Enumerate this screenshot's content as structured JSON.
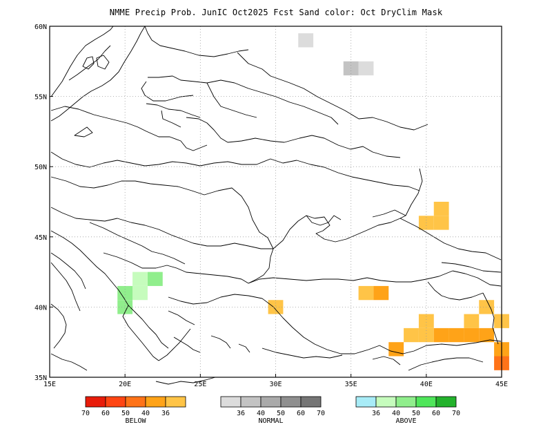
{
  "title": "NMME Precip Prob. JunIC  Oct2025 Fcst  Sand color: Oct DryClim Mask",
  "map": {
    "lon_range": [
      15,
      45
    ],
    "lat_range": [
      35,
      60
    ],
    "grid_lines": "dotted",
    "lon_ticks": [
      {
        "value": 15,
        "label": "15E"
      },
      {
        "value": 20,
        "label": "20E"
      },
      {
        "value": 25,
        "label": "25E"
      },
      {
        "value": 30,
        "label": "30E"
      },
      {
        "value": 35,
        "label": "35E"
      },
      {
        "value": 40,
        "label": "40E"
      },
      {
        "value": 45,
        "label": "45E"
      }
    ],
    "lat_ticks": [
      {
        "value": 60,
        "label": "60N"
      },
      {
        "value": 55,
        "label": "55N"
      },
      {
        "value": 50,
        "label": "50N"
      },
      {
        "value": 45,
        "label": "45N"
      },
      {
        "value": 40,
        "label": "40N"
      },
      {
        "value": 35,
        "label": "35N"
      }
    ],
    "cells": [
      {
        "lon": 32,
        "lat": 59,
        "category": "normal",
        "level": 0
      },
      {
        "lon": 35,
        "lat": 57,
        "category": "normal",
        "level": 1
      },
      {
        "lon": 36,
        "lat": 57,
        "category": "normal",
        "level": 0
      },
      {
        "lon": 41,
        "lat": 47,
        "category": "below",
        "level": 4
      },
      {
        "lon": 40,
        "lat": 46,
        "category": "below",
        "level": 4
      },
      {
        "lon": 41,
        "lat": 46,
        "category": "below",
        "level": 4
      },
      {
        "lon": 22,
        "lat": 42,
        "category": "above",
        "level": 2
      },
      {
        "lon": 21,
        "lat": 42,
        "category": "above",
        "level": 1
      },
      {
        "lon": 21,
        "lat": 41,
        "category": "above",
        "level": 1
      },
      {
        "lon": 20,
        "lat": 41,
        "category": "above",
        "level": 2
      },
      {
        "lon": 20,
        "lat": 40,
        "category": "above",
        "level": 2
      },
      {
        "lon": 36,
        "lat": 41,
        "category": "below",
        "level": 4
      },
      {
        "lon": 37,
        "lat": 41,
        "category": "below",
        "level": 3
      },
      {
        "lon": 30,
        "lat": 40,
        "category": "below",
        "level": 4
      },
      {
        "lon": 44,
        "lat": 40,
        "category": "below",
        "level": 4
      },
      {
        "lon": 40,
        "lat": 39,
        "category": "below",
        "level": 4
      },
      {
        "lon": 43,
        "lat": 39,
        "category": "below",
        "level": 4
      },
      {
        "lon": 45,
        "lat": 39,
        "category": "below",
        "level": 4
      },
      {
        "lon": 39,
        "lat": 38,
        "category": "below",
        "level": 4
      },
      {
        "lon": 40,
        "lat": 38,
        "category": "below",
        "level": 4
      },
      {
        "lon": 41,
        "lat": 38,
        "category": "below",
        "level": 3
      },
      {
        "lon": 42,
        "lat": 38,
        "category": "below",
        "level": 3
      },
      {
        "lon": 43,
        "lat": 38,
        "category": "below",
        "level": 3
      },
      {
        "lon": 44,
        "lat": 38,
        "category": "below",
        "level": 3
      },
      {
        "lon": 38,
        "lat": 37,
        "category": "below",
        "level": 3
      },
      {
        "lon": 45,
        "lat": 37,
        "category": "below",
        "level": 3
      },
      {
        "lon": 45,
        "lat": 36,
        "category": "below",
        "level": 2
      }
    ]
  },
  "legend": [
    {
      "category": "below",
      "label": "BELOW",
      "colors": [
        "#e81c0a",
        "#ff4513",
        "#ff7318",
        "#ffa318",
        "#ffc447"
      ],
      "ticks": [
        "70",
        "60",
        "50",
        "40",
        "36"
      ]
    },
    {
      "category": "normal",
      "label": "NORMAL",
      "colors": [
        "#dcdcdc",
        "#c3c3c3",
        "#aaaaaa",
        "#8f8f8f",
        "#757575"
      ],
      "ticks": [
        "36",
        "40",
        "50",
        "60",
        "70"
      ]
    },
    {
      "category": "above",
      "label": "ABOVE",
      "colors": [
        "#a8ecf7",
        "#c6fcbd",
        "#90ee8c",
        "#4fe65a",
        "#23b22c"
      ],
      "ticks": [
        "36",
        "40",
        "50",
        "60",
        "70"
      ]
    }
  ]
}
